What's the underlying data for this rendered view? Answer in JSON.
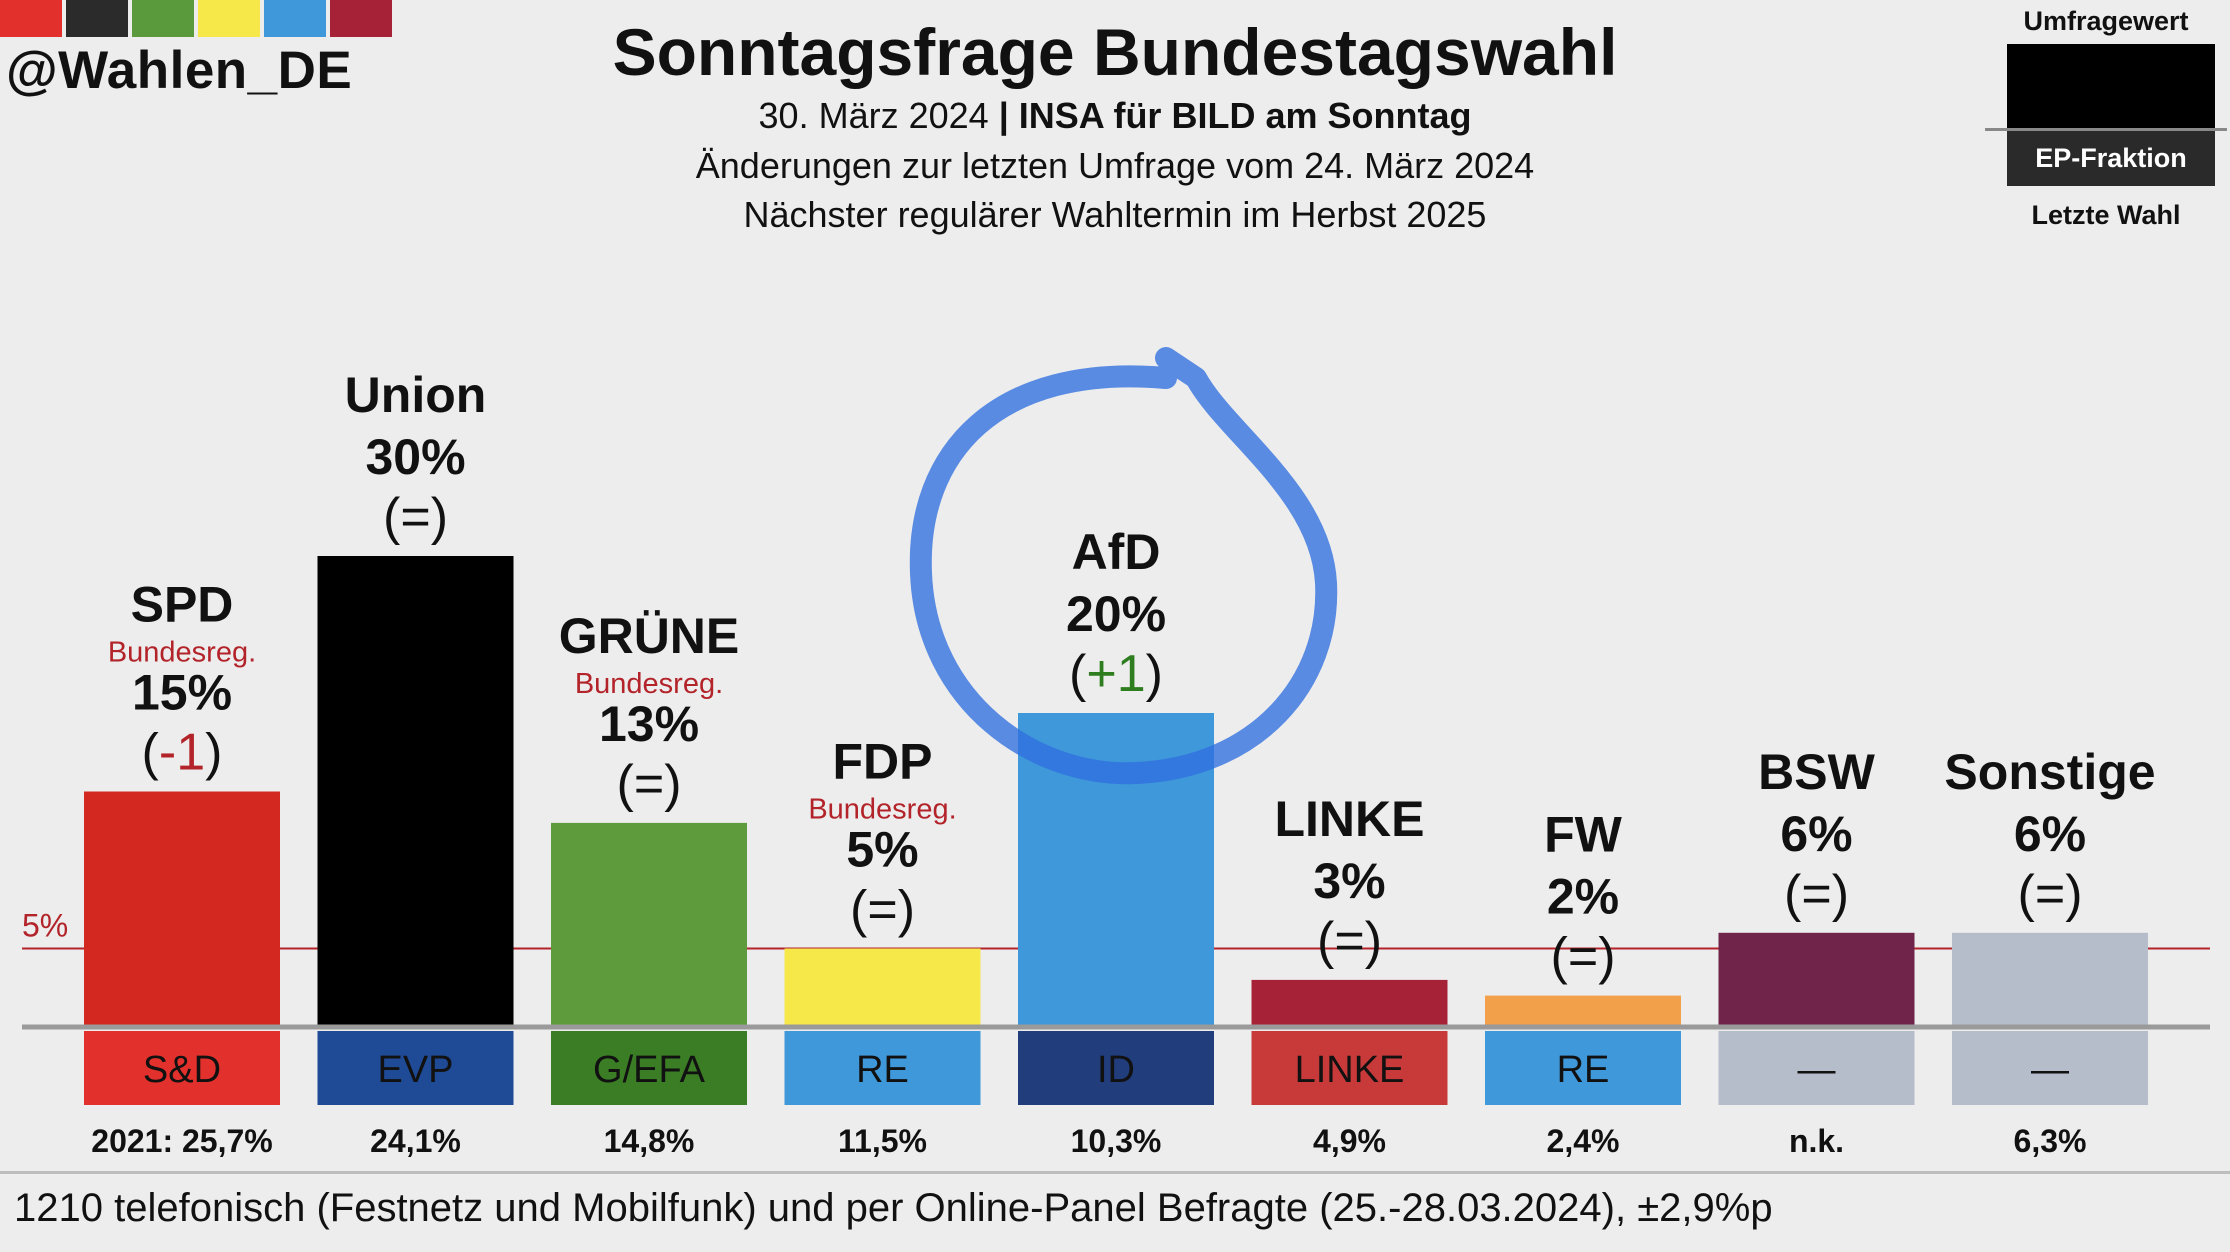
{
  "handle": "@Wahlen_DE",
  "flag_colors": [
    "#e2312c",
    "#2b2b2b",
    "#5b9a3c",
    "#f7e84a",
    "#3f98d9",
    "#a52237"
  ],
  "title": "Sonntagsfrage Bundestagswahl",
  "subtitle_date": "30. März 2024",
  "subtitle_sep": "|",
  "subtitle_source": "INSA für BILD am Sonntag",
  "subtitle_changes": "Änderungen zur letzten Umfrage vom 24. März 2024",
  "subtitle_next": "Nächster regulärer Wahltermin im Herbst 2025",
  "legend": {
    "top": "Umfragewert",
    "middle": "EP-Fraktion",
    "bottom": "Letzte Wahl"
  },
  "footnote": "1210 telefonisch (Festnetz und Mobilfunk) und per Online-Panel Befragte (25.-28.03.2024), ±2,9%p",
  "chart_data": {
    "type": "bar",
    "title": "Sonntagsfrage Bundestagswahl",
    "ylim": [
      0,
      30
    ],
    "threshold": {
      "value": 5,
      "label": "5%",
      "color": "#b3242a"
    },
    "gov_note": "Bundesreg.",
    "categories": [
      "SPD",
      "Union",
      "GRÜNE",
      "FDP",
      "AfD",
      "LINKE",
      "FW",
      "BSW",
      "Sonstige"
    ],
    "values": [
      15,
      30,
      13,
      5,
      20,
      3,
      2,
      6,
      6
    ],
    "value_labels": [
      "15%",
      "30%",
      "13%",
      "5%",
      "20%",
      "3%",
      "2%",
      "6%",
      "6%"
    ],
    "change_signs": [
      "-1",
      "=",
      "=",
      "=",
      "+1",
      "=",
      "=",
      "=",
      "="
    ],
    "change_colors": [
      "#b3242a",
      "#111111",
      "#111111",
      "#111111",
      "#2e7d1f",
      "#111111",
      "#111111",
      "#111111",
      "#111111"
    ],
    "government": [
      true,
      false,
      true,
      true,
      false,
      false,
      false,
      false,
      false
    ],
    "bar_colors": [
      "#d3281f",
      "#000000",
      "#5d9b3c",
      "#f7e84a",
      "#3f98d9",
      "#a52237",
      "#f2a04a",
      "#702449",
      "#b5bcca"
    ],
    "ep_groups": [
      "S&D",
      "EVP",
      "G/EFA",
      "RE",
      "ID",
      "LINKE",
      "RE",
      "—",
      "—"
    ],
    "ep_colors": [
      "#e2312c",
      "#1f4b96",
      "#3a7d25",
      "#3f98d9",
      "#213d7c",
      "#c83a3a",
      "#3f98d9",
      "#b5bcca",
      "#b5bcca"
    ],
    "ep_text_colors": [
      "#111111",
      "#111111",
      "#111111",
      "#111111",
      "#111111",
      "#111111",
      "#111111",
      "#111111",
      "#111111"
    ],
    "last_election": [
      "2021: 25,7%",
      "24,1%",
      "14,8%",
      "11,5%",
      "10,3%",
      "4,9%",
      "2,4%",
      "n.k.",
      "6,3%"
    ],
    "highlight": "AfD"
  }
}
